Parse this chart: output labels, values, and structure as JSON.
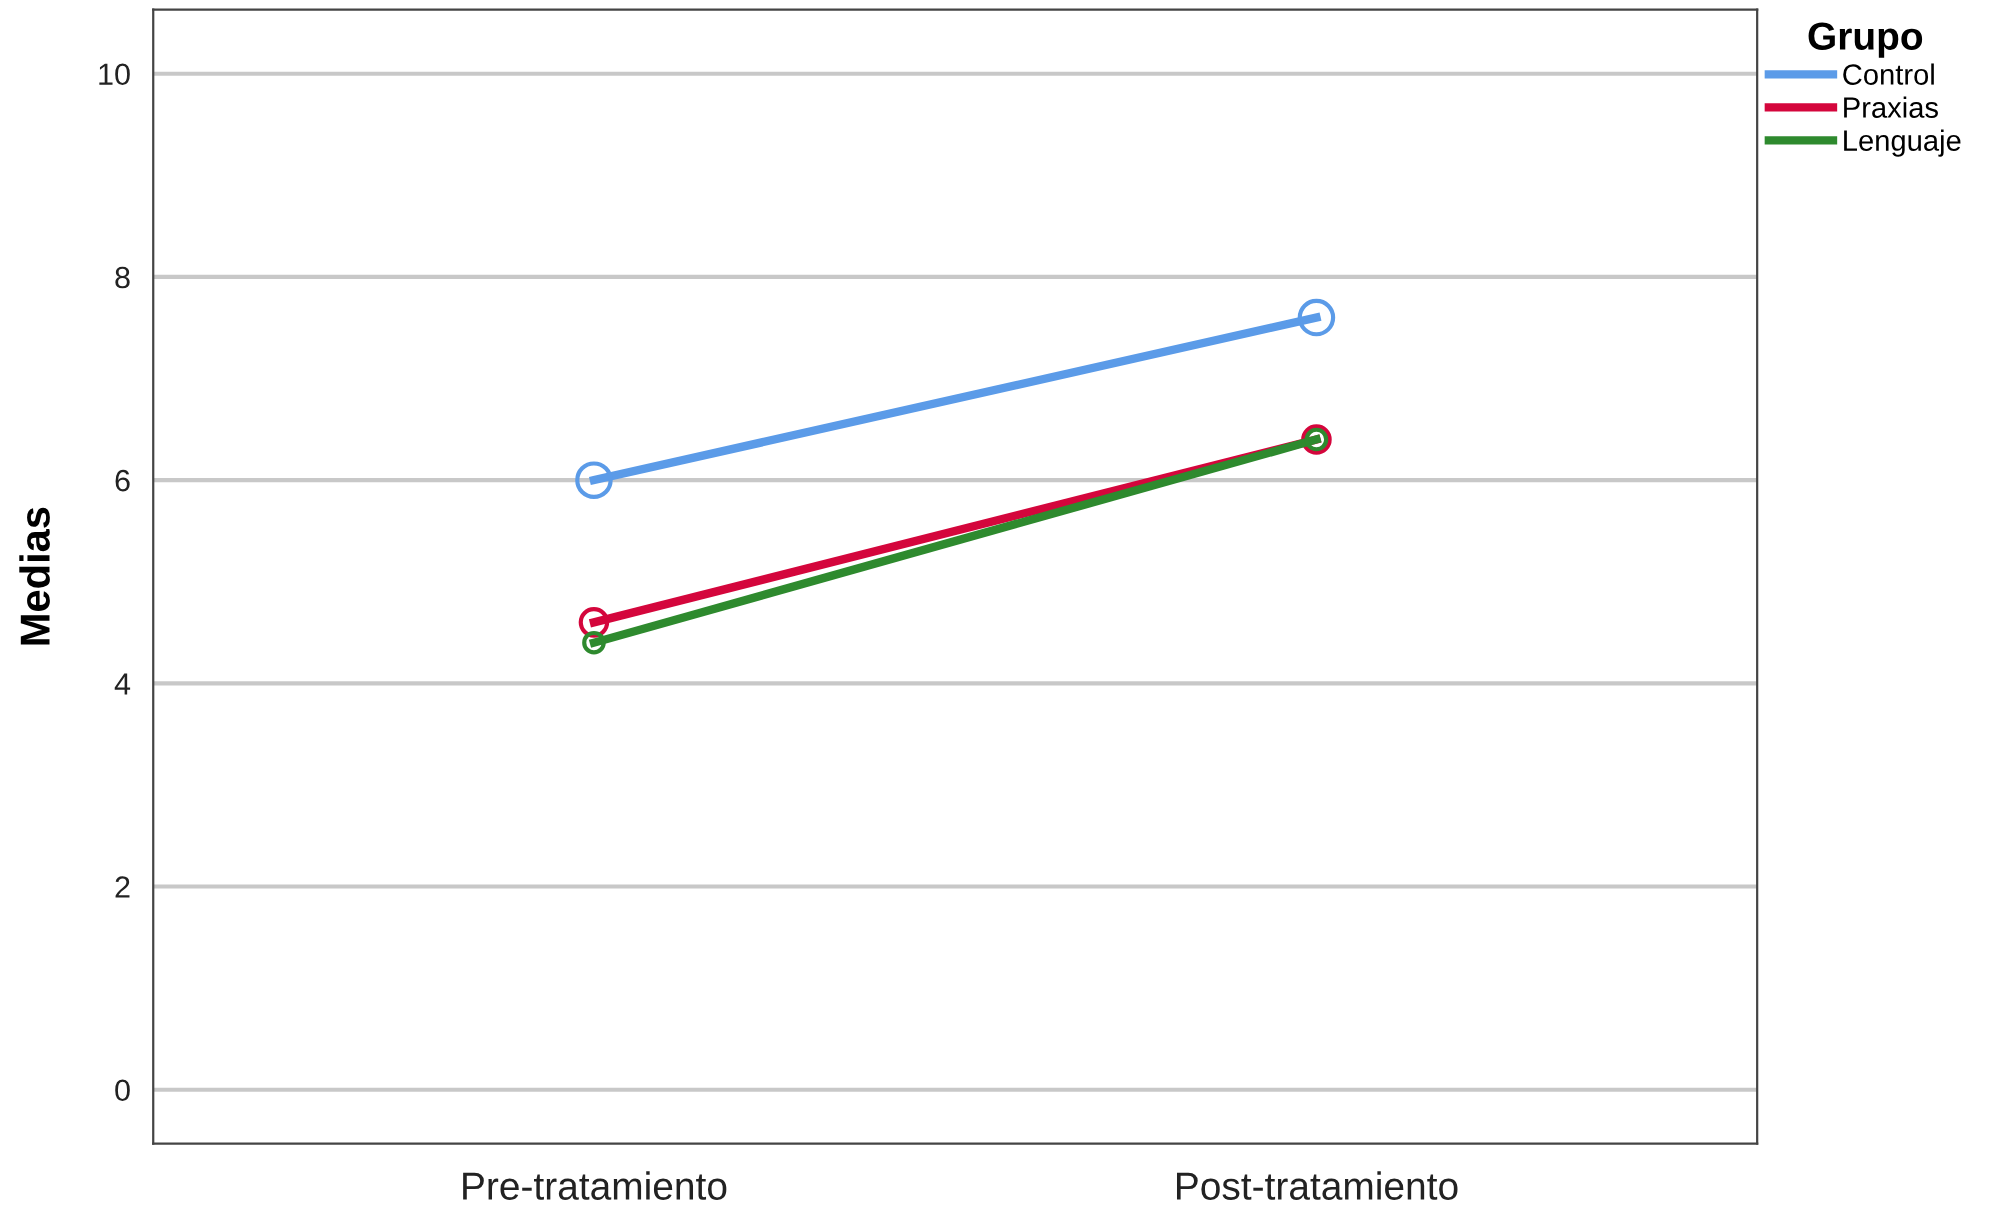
{
  "chart_data": {
    "type": "line",
    "ylabel": "Medias",
    "legend_title": "Grupo",
    "categories": [
      "Pre-tratamiento",
      "Post-tratamiento"
    ],
    "series": [
      {
        "name": "Control",
        "color": "#5b9be8",
        "values": [
          6.0,
          7.6
        ]
      },
      {
        "name": "Praxias",
        "color": "#d4063c",
        "values": [
          4.6,
          6.4
        ]
      },
      {
        "name": "Lenguaje",
        "color": "#2e8a2e",
        "values": [
          4.4,
          6.4
        ]
      }
    ],
    "ylim": [
      -0.53,
      10.63
    ],
    "yticks": [
      0,
      2,
      4,
      6,
      8,
      10
    ],
    "grid": "y",
    "legend": "top right",
    "marker": "circle",
    "line_style": "solid"
  }
}
